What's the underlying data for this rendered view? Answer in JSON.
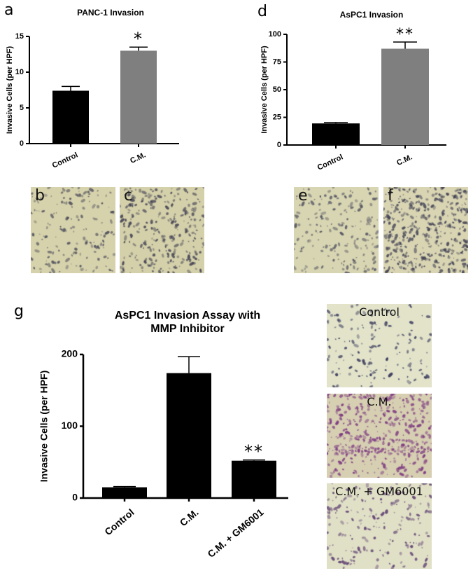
{
  "panel_letters": {
    "a": "a",
    "d": "d",
    "g": "g"
  },
  "chart_data": [
    {
      "id": "panc1",
      "type": "bar",
      "title": "PANC-1 Invasion",
      "ylabel": "Invasive Cells (per HPF)",
      "xlabel": "",
      "categories": [
        "Control",
        "C.M."
      ],
      "values": [
        7.4,
        13.0
      ],
      "errors": [
        0.6,
        0.5
      ],
      "colors": [
        "#000000",
        "#7f7f7f"
      ],
      "annotations": [
        "",
        "*"
      ],
      "ylim": [
        0,
        15
      ],
      "yticks": [
        0,
        5,
        10,
        15
      ],
      "grid": false
    },
    {
      "id": "aspc1",
      "type": "bar",
      "title": "AsPC1 Invasion",
      "ylabel": "Invasive Cells (per HPF)",
      "xlabel": "",
      "categories": [
        "Control",
        "C.M."
      ],
      "values": [
        19.5,
        87.0
      ],
      "errors": [
        0.8,
        6.0
      ],
      "colors": [
        "#000000",
        "#7f7f7f"
      ],
      "annotations": [
        "",
        "**"
      ],
      "ylim": [
        0,
        100
      ],
      "yticks": [
        0,
        25,
        50,
        75,
        100
      ],
      "grid": false
    },
    {
      "id": "mmp",
      "type": "bar",
      "title": "AsPC1 Invasion Assay with MMP Inhibitor",
      "title_lines": [
        "AsPC1 Invasion Assay with",
        "MMP Inhibitor"
      ],
      "ylabel": "Invasive Cells (per HPF)",
      "xlabel": "",
      "categories": [
        "Control",
        "C.M.",
        "C.M. + GM6001"
      ],
      "values": [
        15,
        174,
        52
      ],
      "errors": [
        1,
        23,
        1
      ],
      "colors": [
        "#000000",
        "#000000",
        "#000000"
      ],
      "annotations": [
        "",
        "",
        "**"
      ],
      "ylim": [
        0,
        200
      ],
      "yticks": [
        0,
        100,
        200
      ],
      "grid": false
    }
  ],
  "micrographs": [
    {
      "id": "b",
      "label": "b",
      "bg": "#d6d2ac",
      "dot": "#4a4a5a",
      "density": 160
    },
    {
      "id": "c",
      "label": "c",
      "bg": "#d4d0aa",
      "dot": "#3f3f52",
      "density": 260
    },
    {
      "id": "e",
      "label": "e",
      "bg": "#d8d5b2",
      "dot": "#4f5060",
      "density": 180
    },
    {
      "id": "f",
      "label": "f",
      "bg": "#d9d5b3",
      "dot": "#404054",
      "density": 420
    },
    {
      "id": "g1",
      "label": "Control",
      "bg": "#e2e3c9",
      "dot": "#32325a",
      "density": 140
    },
    {
      "id": "g2",
      "label": "C.M.",
      "bg": "#d6cfb2",
      "dot": "#7b3580",
      "density": 420
    },
    {
      "id": "g3",
      "label": "C.M. + GM6001",
      "bg": "#e0e0c6",
      "dot": "#5a3a70",
      "density": 200
    }
  ]
}
